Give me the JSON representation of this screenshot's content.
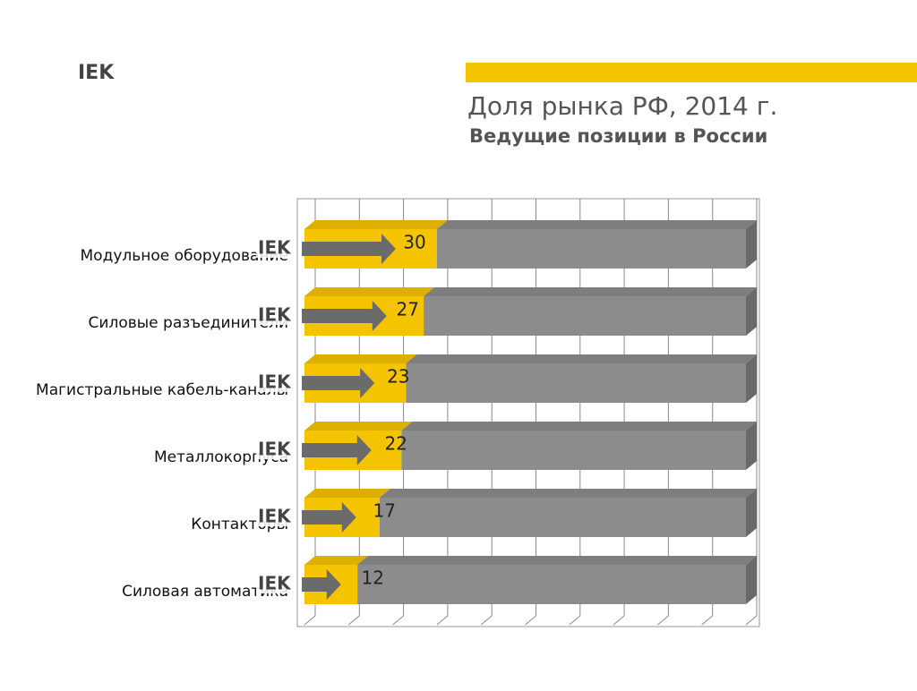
{
  "logo": "IEK",
  "chart_data": {
    "type": "bar3d",
    "title": "Доля рынка РФ, 2014 г.",
    "subtitle": "Ведущие позиции в России",
    "categories": [
      "Модульное оборудование",
      "Силовые разъединители",
      "Магистральные кабель-каналы",
      "Металлокорпуса",
      "Контакторы",
      "Силовая автоматика"
    ],
    "series": [
      {
        "color": "#f5c400",
        "values": [
          30,
          27,
          23,
          22,
          17,
          12
        ]
      },
      {
        "color": "#8c8c8c",
        "values": [
          70,
          73,
          77,
          78,
          83,
          88
        ]
      }
    ],
    "xlim": [
      0,
      100
    ],
    "xticks": [
      0,
      10,
      20,
      30,
      40,
      50,
      60,
      70,
      80,
      90,
      100
    ],
    "grid": true
  }
}
